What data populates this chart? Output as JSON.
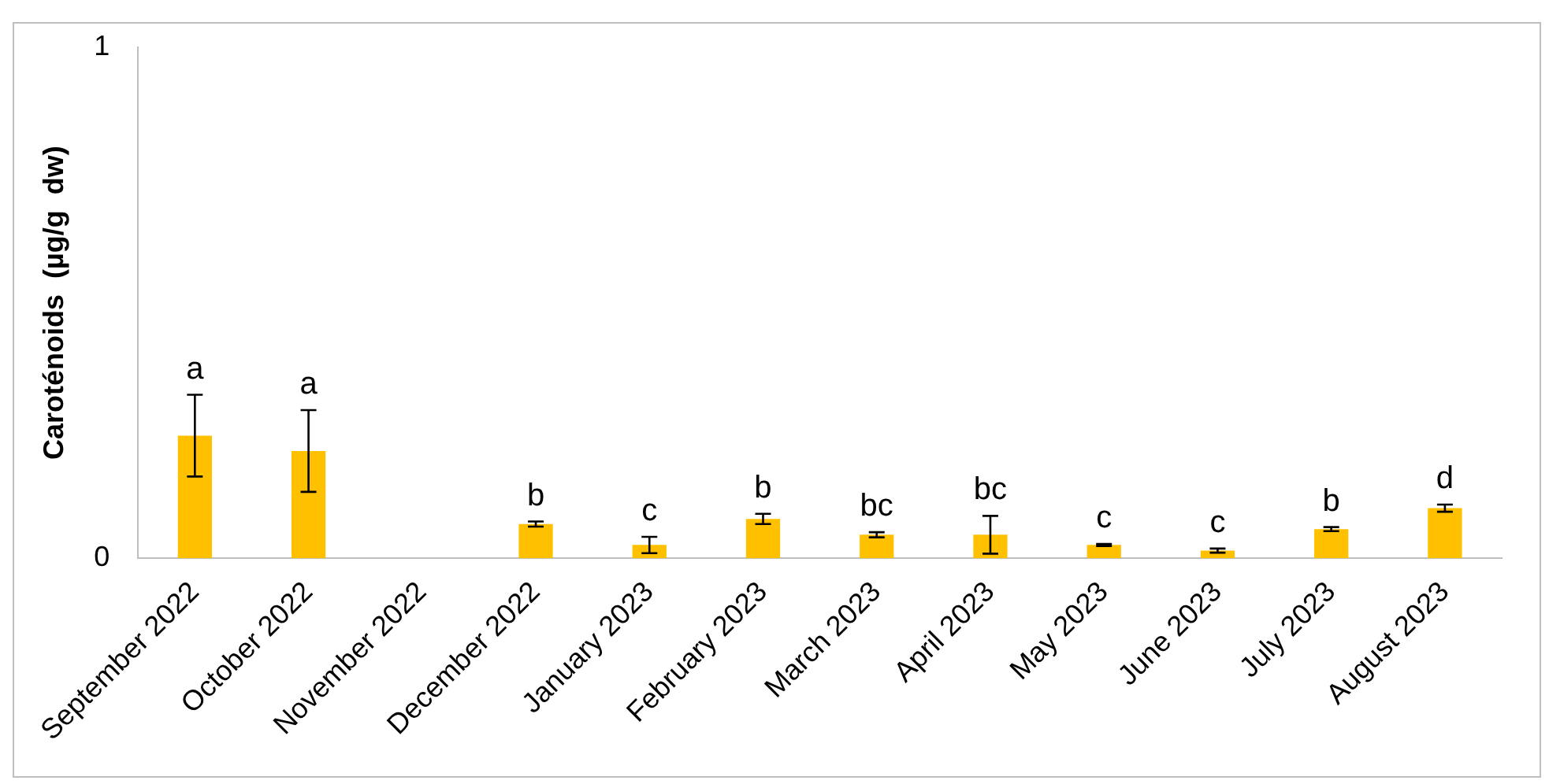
{
  "chart_data": {
    "type": "bar",
    "ylabel": "Caroténoids  (µg/g  dw)",
    "categories": [
      "September 2022",
      "October 2022",
      "November 2022",
      "December 2022",
      "January 2023",
      "February 2023",
      "March 2023",
      "April 2023",
      "May 2023",
      "June 2023",
      "July 2023",
      "August 2023"
    ],
    "values": [
      0.24,
      0.21,
      0,
      0.067,
      0.026,
      0.077,
      0.046,
      0.046,
      0.026,
      0.015,
      0.057,
      0.098
    ],
    "errors": [
      0.08,
      0.08,
      null,
      0.005,
      0.016,
      0.01,
      0.005,
      0.037,
      0.002,
      0.004,
      0.004,
      0.007
    ],
    "color": "#ffc000",
    "ylim": [
      0,
      1
    ],
    "yticks": [
      0,
      1
    ],
    "grid": false,
    "legend": false,
    "annotations": [
      {
        "text": "a",
        "x": "September 2022",
        "y": 0.32
      },
      {
        "text": "a",
        "x": "October 2022",
        "y": 0.29
      },
      {
        "text": "b",
        "x": "December 2022",
        "y": 0.072
      },
      {
        "text": "c",
        "x": "January 2023",
        "y": 0.042
      },
      {
        "text": "b",
        "x": "February 2023",
        "y": 0.087
      },
      {
        "text": "bc",
        "x": "March 2023",
        "y": 0.051
      },
      {
        "text": "bc",
        "x": "April 2023",
        "y": 0.083
      },
      {
        "text": "c",
        "x": "May 2023",
        "y": 0.028
      },
      {
        "text": "c",
        "x": "June 2023",
        "y": 0.019
      },
      {
        "text": "b",
        "x": "July 2023",
        "y": 0.061
      },
      {
        "text": "d",
        "x": "August 2023",
        "y": 0.105
      }
    ]
  }
}
